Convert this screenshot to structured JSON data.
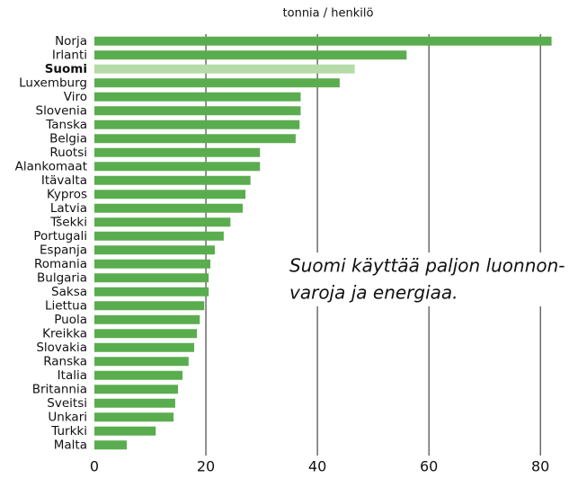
{
  "chart_data": {
    "type": "hbar",
    "title": "tonnia / henkilö",
    "categories": [
      "Norja",
      "Irlanti",
      "Suomi",
      "Luxemburg",
      "Viro",
      "Slovenia",
      "Tanska",
      "Belgia",
      "Ruotsi",
      "Alankomaat",
      "Itävalta",
      "Kypros",
      "Latvia",
      "Tšekki",
      "Portugali",
      "Espanja",
      "Romania",
      "Bulgaria",
      "Saksa",
      "Liettua",
      "Puola",
      "Kreikka",
      "Slovakia",
      "Ranska",
      "Italia",
      "Britannia",
      "Sveitsi",
      "Unkari",
      "Turkki",
      "Malta"
    ],
    "values": [
      82,
      56,
      46.7,
      44,
      37,
      37,
      36.8,
      36.1,
      29.7,
      29.7,
      28,
      27.1,
      26.6,
      24.4,
      23.2,
      21.6,
      20.8,
      20.5,
      20.5,
      19.7,
      18.9,
      18.4,
      17.9,
      16.9,
      15.8,
      15,
      14.5,
      14.2,
      11,
      5.8
    ],
    "color": "#5aad4e",
    "highlight": "Suomi",
    "highlight_color": "#b5dca8",
    "xlim": [
      0,
      84
    ],
    "xticks": [
      0,
      20,
      40,
      60,
      80
    ],
    "grid": true,
    "annotation": [
      "Suomi käyttää paljon luonnon-",
      "varoja ja energiaa."
    ]
  }
}
